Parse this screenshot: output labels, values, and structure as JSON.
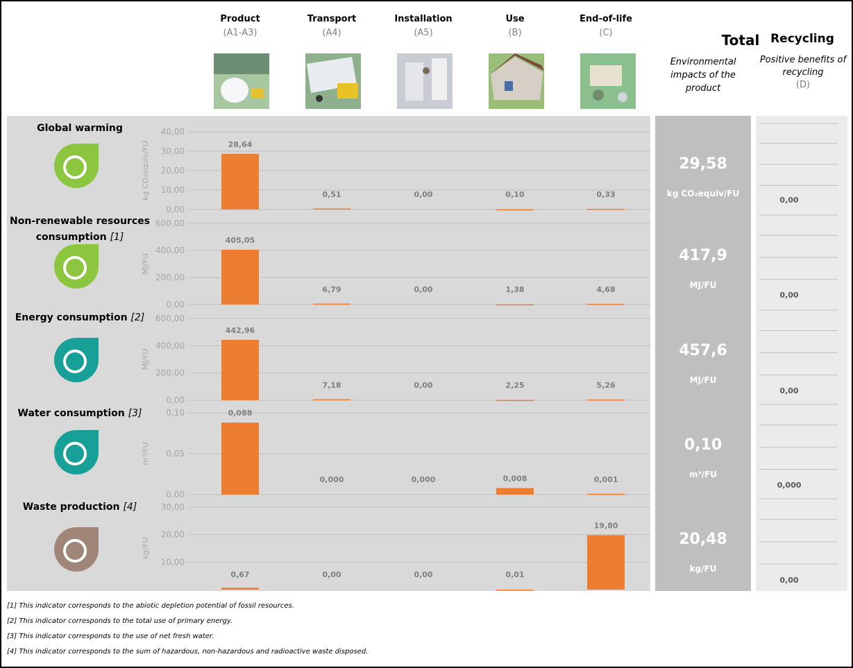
{
  "header": {
    "stages": [
      {
        "name": "Product",
        "code": "(A1-A3)"
      },
      {
        "name": "Transport",
        "code": "(A4)"
      },
      {
        "name": "Installation",
        "code": "(A5)"
      },
      {
        "name": "Use",
        "code": "(B)"
      },
      {
        "name": "End-of-life",
        "code": "(C)"
      }
    ],
    "total": {
      "title": "Total",
      "subtitle": "Environmental impacts of the product"
    },
    "recycling": {
      "title": "Recycling",
      "subtitle": "Positive benefits of recycling",
      "code": "(D)"
    }
  },
  "chart_data": [
    {
      "type": "bar",
      "title": "Global warming",
      "y_label": "kg CO₂equiv/FU",
      "color": "#ed7d31",
      "values": [
        28.64,
        0.51,
        0,
        0.1,
        0.33
      ],
      "value_labels": [
        "28,64",
        "0,51",
        "0,00",
        "0,10",
        "0,33"
      ],
      "ylim": [
        0,
        40
      ],
      "yticks": [
        {
          "value": 0,
          "label": "0,00"
        },
        {
          "value": 10,
          "label": "10,00"
        },
        {
          "value": 20,
          "label": "20,00"
        },
        {
          "value": 30,
          "label": "30,00"
        },
        {
          "value": 40,
          "label": "40,00"
        }
      ],
      "grid": true,
      "total": "29,58",
      "total_unit": "kg CO₂equiv/FU",
      "recycling": "0,00"
    },
    {
      "type": "bar",
      "title": "Non-renewable resources consumption",
      "note": "[1]",
      "y_label": "MJ/FU",
      "color": "#ed7d31",
      "values": [
        405.05,
        6.79,
        0,
        1.38,
        4.68
      ],
      "value_labels": [
        "405,05",
        "6,79",
        "0,00",
        "1,38",
        "4,68"
      ],
      "ylim": [
        0,
        600
      ],
      "yticks": [
        {
          "value": 0,
          "label": "0,00"
        },
        {
          "value": 200,
          "label": "200,00"
        },
        {
          "value": 400,
          "label": "400,00"
        },
        {
          "value": 600,
          "label": "600,00"
        }
      ],
      "grid": true,
      "total": "417,9",
      "total_unit": "MJ/FU",
      "recycling": "0,00"
    },
    {
      "type": "bar",
      "title": "Energy consumption",
      "note": "[2]",
      "y_label": "MJ/FU",
      "color": "#ed7d31",
      "values": [
        442.96,
        7.18,
        0,
        2.25,
        5.26
      ],
      "value_labels": [
        "442,96",
        "7,18",
        "0,00",
        "2,25",
        "5,26"
      ],
      "ylim": [
        0,
        600
      ],
      "yticks": [
        {
          "value": 0,
          "label": "0,00"
        },
        {
          "value": 200,
          "label": "200,00"
        },
        {
          "value": 400,
          "label": "400,00"
        },
        {
          "value": 600,
          "label": "600,00"
        }
      ],
      "grid": true,
      "total": "457,6",
      "total_unit": "MJ/FU",
      "recycling": "0,00"
    },
    {
      "type": "bar",
      "title": "Water consumption",
      "note": "[3]",
      "y_label": "m³/FU",
      "color": "#ed7d31",
      "values": [
        0.088,
        0,
        0,
        0.008,
        0.001
      ],
      "value_labels": [
        "0,088",
        "0,000",
        "0,000",
        "0,008",
        "0,001"
      ],
      "ylim": [
        0,
        0.1
      ],
      "yticks": [
        {
          "value": 0,
          "label": "0,00"
        },
        {
          "value": 0.05,
          "label": "0,05"
        },
        {
          "value": 0.1,
          "label": "0,10"
        }
      ],
      "grid": true,
      "total": "0,10",
      "total_unit": "m³/FU",
      "recycling": "0,000"
    },
    {
      "type": "bar",
      "title": "Waste production",
      "note": "[4]",
      "y_label": "kg/FU",
      "color": "#ed7d31",
      "values": [
        0.67,
        0,
        0,
        0.01,
        19.8
      ],
      "value_labels": [
        "0,67",
        "0,00",
        "0,00",
        "0,01",
        "19,80"
      ],
      "ylim": [
        0,
        30
      ],
      "yticks": [
        {
          "value": 10,
          "label": "10,00"
        },
        {
          "value": 20,
          "label": "20,00"
        },
        {
          "value": 30,
          "label": "30,00"
        }
      ],
      "grid": true,
      "total": "20,48",
      "total_unit": "kg/FU",
      "recycling": "0,00"
    }
  ],
  "footnotes": [
    "[1] This indicator corresponds to the abiotic depletion potential of fossil resources.",
    "[2] This indicator corresponds to the total use of primary energy.",
    "[3] This indicator corresponds to the use of net fresh water.",
    "[4] This indicator corresponds to the sum of hazardous, non-hazardous and radioactive waste disposed."
  ]
}
